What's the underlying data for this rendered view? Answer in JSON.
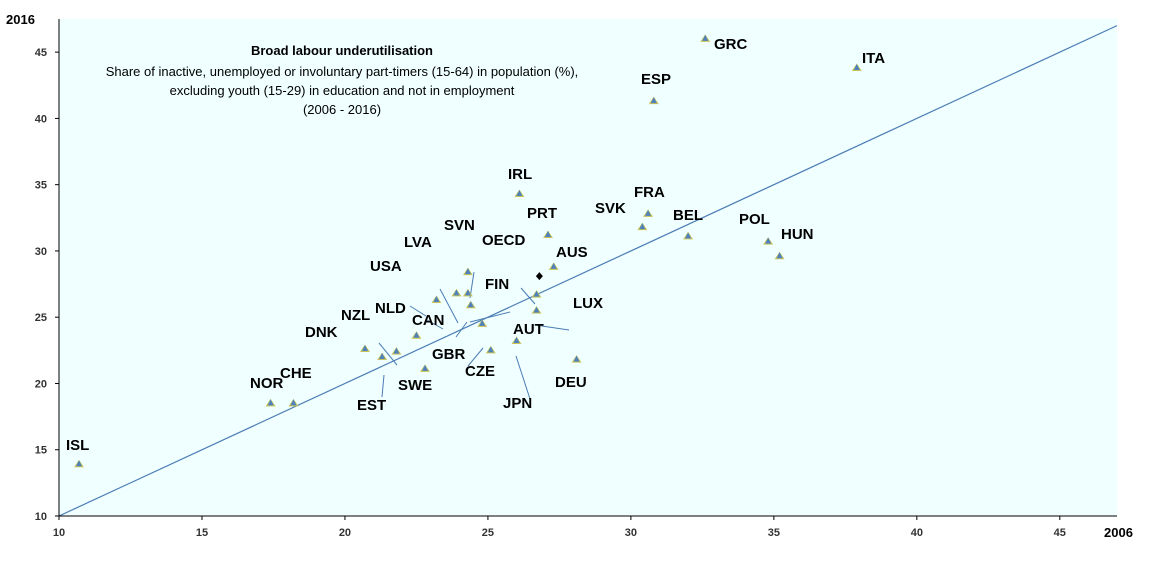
{
  "chart_data": {
    "type": "scatter",
    "title": "Broad labour underutilisation",
    "subtitle": [
      "Share of inactive, unemployed or involuntary part-timers (15-64) in population (%),",
      "excluding youth (15-29) in education and not in employment",
      "(2006 - 2016)"
    ],
    "xlabel": "2006",
    "ylabel": "2016",
    "xlim": [
      10,
      47
    ],
    "ylim": [
      10,
      47.5
    ],
    "xticks": [
      10,
      15,
      20,
      25,
      30,
      35,
      40,
      45
    ],
    "yticks": [
      10,
      15,
      20,
      25,
      30,
      35,
      40,
      45
    ],
    "grid": false,
    "reference_line": "45-degree line (y = x)",
    "colors": {
      "background": "#f0ffff",
      "marker": "#4f81bd",
      "marker_base": "#c8c35a",
      "oecd_marker": "#000000",
      "line": "#4a7db5",
      "leader": "#4a7db5"
    },
    "points": [
      {
        "label": "GRC",
        "x": 32.6,
        "y": 46.0
      },
      {
        "label": "ITA",
        "x": 37.9,
        "y": 43.8
      },
      {
        "label": "ESP",
        "x": 30.8,
        "y": 41.3
      },
      {
        "label": "IRL",
        "x": 26.1,
        "y": 34.3
      },
      {
        "label": "FRA",
        "x": 30.6,
        "y": 32.8
      },
      {
        "label": "SVK",
        "x": 30.4,
        "y": 31.8
      },
      {
        "label": "BEL",
        "x": 32.0,
        "y": 31.1
      },
      {
        "label": "PRT",
        "x": 27.1,
        "y": 31.2
      },
      {
        "label": "POL",
        "x": 34.8,
        "y": 30.7
      },
      {
        "label": "HUN",
        "x": 35.2,
        "y": 29.6
      },
      {
        "label": "AUS",
        "x": 27.3,
        "y": 28.8
      },
      {
        "label": "OECD",
        "x": 26.8,
        "y": 28.1,
        "highlight": true
      },
      {
        "label": "SVN",
        "x": 24.3,
        "y": 28.4
      },
      {
        "label": "LVA",
        "x": 23.9,
        "y": 26.8
      },
      {
        "label": "USA",
        "x": 23.2,
        "y": 26.3
      },
      {
        "label": "FIN",
        "x": 26.7,
        "y": 26.7
      },
      {
        "label": "LUX",
        "x": 26.7,
        "y": 25.5
      },
      {
        "label": "NLD",
        "x": 24.3,
        "y": 26.8
      },
      {
        "label": "CAN",
        "x": 24.4,
        "y": 25.9
      },
      {
        "label": "NZL",
        "x": 22.5,
        "y": 23.6
      },
      {
        "label": "AUT",
        "x": 24.8,
        "y": 24.5
      },
      {
        "label": "DNK",
        "x": 20.7,
        "y": 22.6
      },
      {
        "label": "GBR",
        "x": 26.0,
        "y": 23.2
      },
      {
        "label": "CZE",
        "x": 25.1,
        "y": 22.5
      },
      {
        "label": "DEU",
        "x": 28.1,
        "y": 21.8
      },
      {
        "label": "NOR",
        "x": 17.4,
        "y": 18.5
      },
      {
        "label": "CHE",
        "x": 18.2,
        "y": 18.5
      },
      {
        "label": "EST",
        "x": 21.3,
        "y": 22.0
      },
      {
        "label": "SWE",
        "x": 21.8,
        "y": 22.4
      },
      {
        "label": "JPN",
        "x": 22.8,
        "y": 21.1
      },
      {
        "label": "ISL",
        "x": 10.7,
        "y": 13.9
      }
    ]
  }
}
